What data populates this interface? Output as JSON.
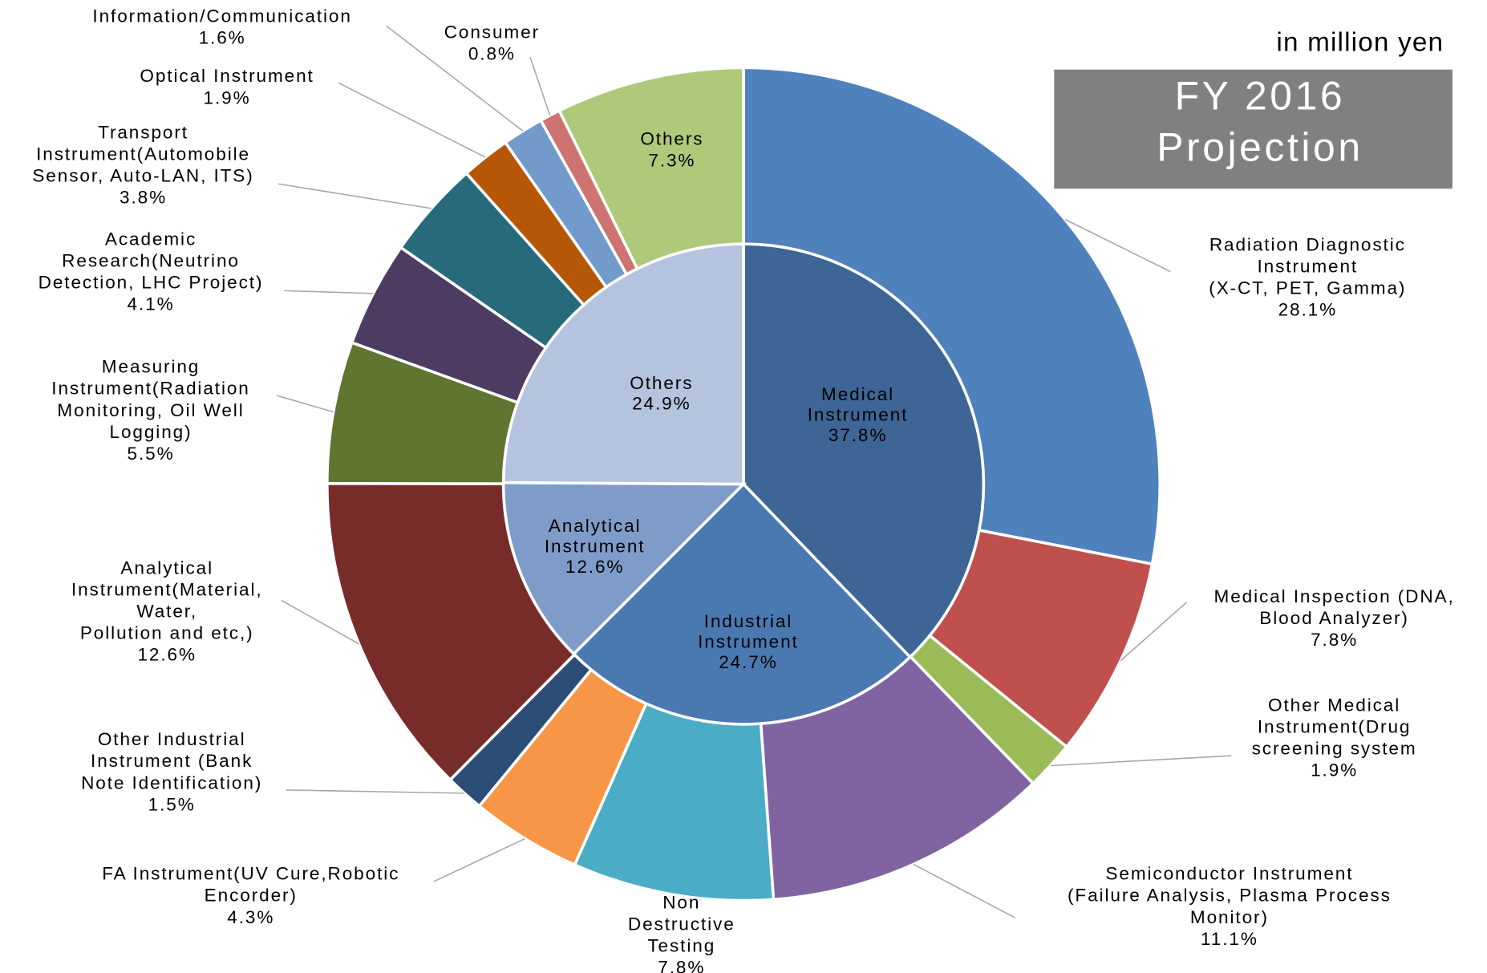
{
  "chart_data": {
    "type": "sunburst",
    "subtitle": "in million yen",
    "title": "FY 2016\nProjection",
    "inner": {
      "categories": [
        "Medical\nInstrument",
        "Industrial\nInstrument",
        "Analytical\nInstrument",
        "Others"
      ],
      "values": [
        37.8,
        24.7,
        12.6,
        24.9
      ],
      "value_labels": [
        "37.8%",
        "24.7%",
        "12.6%",
        "24.9%"
      ],
      "colors": [
        "#3d6595",
        "#4a79b1",
        "#7f9cc9",
        "#b4c3de"
      ]
    },
    "outer": {
      "categories": [
        "Radiation Diagnostic\nInstrument\n(X-CT, PET, Gamma)",
        "Medical Inspection (DNA,\nBlood Analyzer)",
        "Other Medical\nInstrument(Drug\nscreening system",
        "Semiconductor Instrument\n(Failure Analysis, Plasma Process\nMonitor)",
        "Non\nDestructive\nTesting",
        "FA Instrument(UV Cure,Robotic\nEncorder)",
        "Other Industrial\nInstrument (Bank\nNote Identification)",
        "Analytical\nInstrument(Material,\nWater,\nPollution and etc,)",
        "Measuring\nInstrument(Radiation\nMonitoring, Oil Well\nLogging)",
        "Academic\nResearch(Neutrino\nDetection, LHC Project)",
        "Transport\nInstrument(Automobile\nSensor, Auto-LAN, ITS)",
        "Optical Instrument",
        "Information/Communication",
        "Consumer",
        "Others"
      ],
      "values": [
        28.1,
        7.8,
        1.9,
        11.1,
        7.8,
        4.3,
        1.5,
        12.6,
        5.5,
        4.1,
        3.8,
        1.9,
        1.6,
        0.8,
        7.3
      ],
      "value_labels": [
        "28.1%",
        "7.8%",
        "1.9%",
        "11.1%",
        "7.8%",
        "4.3%",
        "1.5%",
        "12.6%",
        "5.5%",
        "4.1%",
        "3.8%",
        "1.9%",
        "1.6%",
        "0.8%",
        "7.3%"
      ],
      "colors": [
        "#4f81bd",
        "#c0504d",
        "#9bbb59",
        "#8064a2",
        "#4bacc6",
        "#f79646",
        "#2c4d75",
        "#772c2a",
        "#5f7530",
        "#4d3b62",
        "#276a7c",
        "#b65708",
        "#729aca",
        "#cd7371",
        "#afc97a"
      ]
    }
  }
}
